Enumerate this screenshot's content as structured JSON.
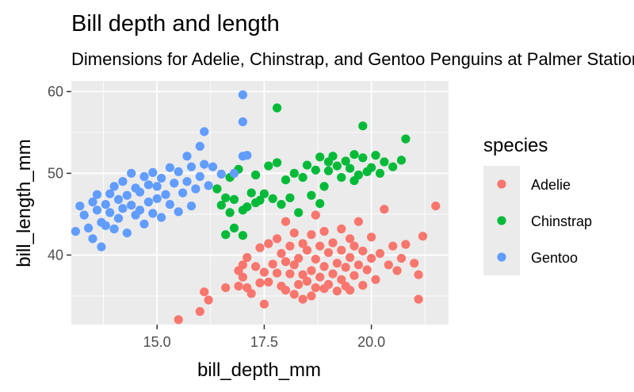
{
  "chart_data": {
    "type": "scatter",
    "title": "Bill depth and length",
    "subtitle": "Dimensions for Adelie, Chinstrap, and Gentoo Penguins at Palmer Station LTER",
    "xlabel": "bill_depth_mm",
    "ylabel": "bill_length_mm",
    "xlim": [
      13.0,
      21.8
    ],
    "ylim": [
      31.5,
      61.3
    ],
    "x_ticks": [
      15.0,
      17.5,
      20.0
    ],
    "x_tick_labels": [
      "15.0",
      "17.5",
      "20.0"
    ],
    "y_ticks": [
      40,
      50,
      60
    ],
    "y_tick_labels": [
      "40",
      "50",
      "60"
    ],
    "grid": true,
    "legend": {
      "title": "species",
      "position": "right"
    },
    "series": [
      {
        "name": "Adelie",
        "color": "#F8766D",
        "points": [
          [
            15.5,
            32.1
          ],
          [
            16.0,
            33.1
          ],
          [
            16.1,
            35.5
          ],
          [
            16.2,
            34.5
          ],
          [
            16.6,
            36.0
          ],
          [
            16.9,
            36.2
          ],
          [
            16.9,
            38.1
          ],
          [
            17.0,
            37.3
          ],
          [
            17.0,
            38.8
          ],
          [
            17.1,
            36.0
          ],
          [
            17.1,
            39.7
          ],
          [
            17.2,
            35.3
          ],
          [
            17.3,
            38.6
          ],
          [
            17.4,
            36.6
          ],
          [
            17.4,
            40.9
          ],
          [
            17.5,
            34.0
          ],
          [
            17.5,
            37.9
          ],
          [
            17.6,
            36.7
          ],
          [
            17.6,
            41.4
          ],
          [
            17.7,
            38.9
          ],
          [
            17.8,
            37.8
          ],
          [
            17.8,
            42.0
          ],
          [
            17.9,
            36.2
          ],
          [
            17.9,
            40.2
          ],
          [
            18.0,
            35.7
          ],
          [
            18.0,
            39.2
          ],
          [
            18.0,
            44.1
          ],
          [
            18.1,
            37.7
          ],
          [
            18.1,
            41.1
          ],
          [
            18.2,
            35.2
          ],
          [
            18.2,
            38.8
          ],
          [
            18.2,
            42.7
          ],
          [
            18.3,
            36.4
          ],
          [
            18.3,
            39.6
          ],
          [
            18.4,
            34.6
          ],
          [
            18.4,
            37.6
          ],
          [
            18.4,
            41.4
          ],
          [
            18.5,
            36.8
          ],
          [
            18.5,
            40.6
          ],
          [
            18.6,
            35.0
          ],
          [
            18.6,
            38.1
          ],
          [
            18.6,
            42.5
          ],
          [
            18.7,
            36.0
          ],
          [
            18.7,
            39.5
          ],
          [
            18.7,
            44.9
          ],
          [
            18.8,
            37.3
          ],
          [
            18.8,
            41.1
          ],
          [
            18.9,
            35.9
          ],
          [
            18.9,
            38.6
          ],
          [
            18.9,
            42.9
          ],
          [
            19.0,
            36.4
          ],
          [
            19.0,
            40.3
          ],
          [
            19.1,
            37.7
          ],
          [
            19.1,
            41.5
          ],
          [
            19.2,
            35.6
          ],
          [
            19.2,
            39.0
          ],
          [
            19.3,
            37.0
          ],
          [
            19.3,
            40.6
          ],
          [
            19.3,
            43.2
          ],
          [
            19.4,
            36.2
          ],
          [
            19.4,
            38.5
          ],
          [
            19.5,
            35.7
          ],
          [
            19.5,
            39.7
          ],
          [
            19.5,
            42.0
          ],
          [
            19.6,
            37.5
          ],
          [
            19.6,
            41.1
          ],
          [
            19.7,
            38.8
          ],
          [
            19.7,
            44.1
          ],
          [
            19.8,
            36.3
          ],
          [
            19.8,
            40.5
          ],
          [
            19.9,
            38.2
          ],
          [
            20.0,
            39.6
          ],
          [
            20.0,
            42.2
          ],
          [
            20.1,
            37.0
          ],
          [
            20.2,
            40.2
          ],
          [
            20.3,
            45.6
          ],
          [
            20.4,
            38.8
          ],
          [
            20.5,
            41.1
          ],
          [
            20.6,
            38.1
          ],
          [
            20.7,
            39.6
          ],
          [
            20.8,
            41.3
          ],
          [
            21.0,
            39.0
          ],
          [
            21.1,
            37.6
          ],
          [
            21.1,
            34.6
          ],
          [
            21.2,
            42.3
          ],
          [
            21.5,
            46.0
          ]
        ]
      },
      {
        "name": "Chinstrap",
        "color": "#00BA38",
        "points": [
          [
            16.4,
            48.1
          ],
          [
            16.5,
            46.1
          ],
          [
            16.6,
            47.0
          ],
          [
            16.6,
            42.5
          ],
          [
            16.7,
            45.2
          ],
          [
            16.7,
            49.5
          ],
          [
            16.8,
            46.8
          ],
          [
            16.8,
            43.3
          ],
          [
            16.9,
            50.5
          ],
          [
            17.0,
            45.5
          ],
          [
            17.0,
            42.4
          ],
          [
            17.1,
            45.9
          ],
          [
            17.2,
            47.6
          ],
          [
            17.3,
            49.8
          ],
          [
            17.3,
            46.4
          ],
          [
            17.4,
            46.7
          ],
          [
            17.5,
            47.5
          ],
          [
            17.6,
            50.9
          ],
          [
            17.7,
            46.9
          ],
          [
            17.8,
            51.3
          ],
          [
            17.8,
            58.0
          ],
          [
            17.9,
            46.2
          ],
          [
            18.0,
            49.2
          ],
          [
            18.1,
            47.0
          ],
          [
            18.2,
            50.0
          ],
          [
            18.3,
            45.2
          ],
          [
            18.4,
            49.5
          ],
          [
            18.5,
            51.0
          ],
          [
            18.6,
            47.3
          ],
          [
            18.7,
            50.4
          ],
          [
            18.8,
            46.3
          ],
          [
            18.8,
            52.0
          ],
          [
            18.9,
            48.4
          ],
          [
            19.0,
            50.3
          ],
          [
            19.0,
            51.4
          ],
          [
            19.1,
            52.1
          ],
          [
            19.2,
            50.9
          ],
          [
            19.3,
            49.5
          ],
          [
            19.4,
            51.5
          ],
          [
            19.5,
            50.6
          ],
          [
            19.6,
            49.1
          ],
          [
            19.6,
            52.3
          ],
          [
            19.7,
            49.8
          ],
          [
            19.8,
            51.9
          ],
          [
            19.8,
            55.8
          ],
          [
            19.9,
            50.2
          ],
          [
            20.0,
            50.7
          ],
          [
            20.1,
            52.2
          ],
          [
            20.2,
            50.0
          ],
          [
            20.3,
            51.4
          ],
          [
            20.5,
            50.8
          ],
          [
            20.7,
            51.6
          ],
          [
            20.8,
            54.2
          ]
        ]
      },
      {
        "name": "Gentoo",
        "color": "#619CFF",
        "points": [
          [
            13.1,
            42.9
          ],
          [
            13.2,
            46.0
          ],
          [
            13.3,
            44.9
          ],
          [
            13.4,
            43.3
          ],
          [
            13.5,
            46.5
          ],
          [
            13.5,
            42.0
          ],
          [
            13.6,
            45.5
          ],
          [
            13.6,
            47.4
          ],
          [
            13.7,
            44.0
          ],
          [
            13.7,
            41.0
          ],
          [
            13.8,
            46.2
          ],
          [
            13.8,
            43.6
          ],
          [
            13.9,
            47.5
          ],
          [
            13.9,
            45.2
          ],
          [
            14.0,
            48.4
          ],
          [
            14.0,
            43.2
          ],
          [
            14.1,
            46.8
          ],
          [
            14.1,
            44.5
          ],
          [
            14.2,
            49.0
          ],
          [
            14.2,
            45.7
          ],
          [
            14.3,
            47.3
          ],
          [
            14.3,
            42.7
          ],
          [
            14.4,
            50.0
          ],
          [
            14.4,
            46.1
          ],
          [
            14.5,
            48.2
          ],
          [
            14.5,
            44.9
          ],
          [
            14.6,
            45.5
          ],
          [
            14.6,
            47.7
          ],
          [
            14.7,
            49.6
          ],
          [
            14.7,
            43.8
          ],
          [
            14.8,
            46.5
          ],
          [
            14.8,
            48.6
          ],
          [
            14.9,
            45.1
          ],
          [
            14.9,
            50.1
          ],
          [
            15.0,
            46.9
          ],
          [
            15.0,
            48.4
          ],
          [
            15.1,
            44.6
          ],
          [
            15.1,
            49.4
          ],
          [
            15.2,
            47.4
          ],
          [
            15.3,
            50.7
          ],
          [
            15.3,
            46.2
          ],
          [
            15.4,
            48.8
          ],
          [
            15.5,
            45.3
          ],
          [
            15.5,
            50.2
          ],
          [
            15.6,
            47.6
          ],
          [
            15.7,
            49.0
          ],
          [
            15.7,
            52.1
          ],
          [
            15.8,
            46.0
          ],
          [
            15.8,
            50.8
          ],
          [
            15.9,
            48.1
          ],
          [
            16.0,
            53.3
          ],
          [
            16.0,
            49.6
          ],
          [
            16.1,
            51.1
          ],
          [
            16.1,
            55.1
          ],
          [
            16.2,
            48.5
          ],
          [
            16.3,
            50.8
          ],
          [
            16.5,
            49.9
          ],
          [
            16.8,
            50.0
          ],
          [
            17.0,
            52.1
          ],
          [
            17.0,
            56.3
          ],
          [
            17.1,
            52.2
          ],
          [
            17.0,
            59.6
          ]
        ]
      }
    ]
  }
}
